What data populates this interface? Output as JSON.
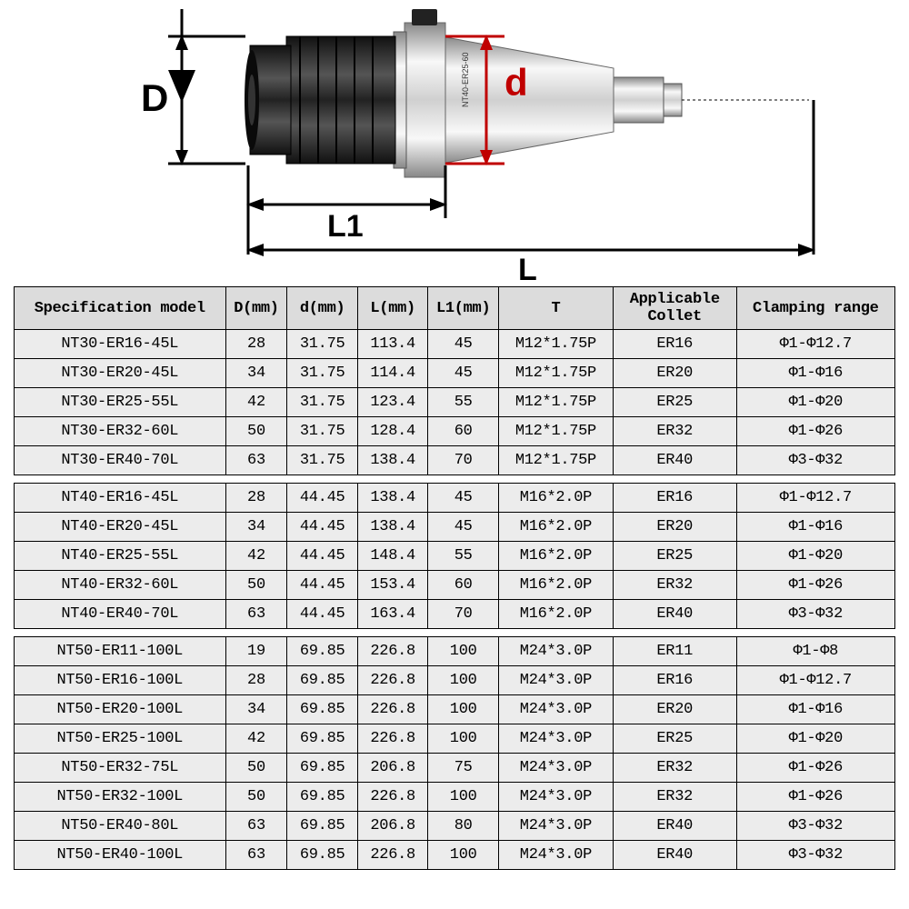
{
  "diagram": {
    "label_D": "D",
    "label_d": "d",
    "label_L1": "L1",
    "label_L": "L",
    "product_text": "NT40-ER25-60"
  },
  "headers": {
    "spec": "Specification model",
    "D": "D(mm)",
    "d": "d(mm)",
    "L": "L(mm)",
    "L1": "L1(mm)",
    "T": "T",
    "collet": "Applicable Collet",
    "range": "Clamping range"
  },
  "groups": [
    [
      {
        "spec": "NT30-ER16-45L",
        "D": "28",
        "d": "31.75",
        "L": "113.4",
        "L1": "45",
        "T": "M12*1.75P",
        "collet": "ER16",
        "range": "Φ1-Φ12.7"
      },
      {
        "spec": "NT30-ER20-45L",
        "D": "34",
        "d": "31.75",
        "L": "114.4",
        "L1": "45",
        "T": "M12*1.75P",
        "collet": "ER20",
        "range": "Φ1-Φ16"
      },
      {
        "spec": "NT30-ER25-55L",
        "D": "42",
        "d": "31.75",
        "L": "123.4",
        "L1": "55",
        "T": "M12*1.75P",
        "collet": "ER25",
        "range": "Φ1-Φ20"
      },
      {
        "spec": "NT30-ER32-60L",
        "D": "50",
        "d": "31.75",
        "L": "128.4",
        "L1": "60",
        "T": "M12*1.75P",
        "collet": "ER32",
        "range": "Φ1-Φ26"
      },
      {
        "spec": "NT30-ER40-70L",
        "D": "63",
        "d": "31.75",
        "L": "138.4",
        "L1": "70",
        "T": "M12*1.75P",
        "collet": "ER40",
        "range": "Φ3-Φ32"
      }
    ],
    [
      {
        "spec": "NT40-ER16-45L",
        "D": "28",
        "d": "44.45",
        "L": "138.4",
        "L1": "45",
        "T": "M16*2.0P",
        "collet": "ER16",
        "range": "Φ1-Φ12.7"
      },
      {
        "spec": "NT40-ER20-45L",
        "D": "34",
        "d": "44.45",
        "L": "138.4",
        "L1": "45",
        "T": "M16*2.0P",
        "collet": "ER20",
        "range": "Φ1-Φ16"
      },
      {
        "spec": "NT40-ER25-55L",
        "D": "42",
        "d": "44.45",
        "L": "148.4",
        "L1": "55",
        "T": "M16*2.0P",
        "collet": "ER25",
        "range": "Φ1-Φ20"
      },
      {
        "spec": "NT40-ER32-60L",
        "D": "50",
        "d": "44.45",
        "L": "153.4",
        "L1": "60",
        "T": "M16*2.0P",
        "collet": "ER32",
        "range": "Φ1-Φ26"
      },
      {
        "spec": "NT40-ER40-70L",
        "D": "63",
        "d": "44.45",
        "L": "163.4",
        "L1": "70",
        "T": "M16*2.0P",
        "collet": "ER40",
        "range": "Φ3-Φ32"
      }
    ],
    [
      {
        "spec": "NT50-ER11-100L",
        "D": "19",
        "d": "69.85",
        "L": "226.8",
        "L1": "100",
        "T": "M24*3.0P",
        "collet": "ER11",
        "range": "Φ1-Φ8"
      },
      {
        "spec": "NT50-ER16-100L",
        "D": "28",
        "d": "69.85",
        "L": "226.8",
        "L1": "100",
        "T": "M24*3.0P",
        "collet": "ER16",
        "range": "Φ1-Φ12.7"
      },
      {
        "spec": "NT50-ER20-100L",
        "D": "34",
        "d": "69.85",
        "L": "226.8",
        "L1": "100",
        "T": "M24*3.0P",
        "collet": "ER20",
        "range": "Φ1-Φ16"
      },
      {
        "spec": "NT50-ER25-100L",
        "D": "42",
        "d": "69.85",
        "L": "226.8",
        "L1": "100",
        "T": "M24*3.0P",
        "collet": "ER25",
        "range": "Φ1-Φ20"
      },
      {
        "spec": "NT50-ER32-75L",
        "D": "50",
        "d": "69.85",
        "L": "206.8",
        "L1": "75",
        "T": "M24*3.0P",
        "collet": "ER32",
        "range": "Φ1-Φ26"
      },
      {
        "spec": "NT50-ER32-100L",
        "D": "50",
        "d": "69.85",
        "L": "226.8",
        "L1": "100",
        "T": "M24*3.0P",
        "collet": "ER32",
        "range": "Φ1-Φ26"
      },
      {
        "spec": "NT50-ER40-80L",
        "D": "63",
        "d": "69.85",
        "L": "206.8",
        "L1": "80",
        "T": "M24*3.0P",
        "collet": "ER40",
        "range": "Φ3-Φ32"
      },
      {
        "spec": "NT50-ER40-100L",
        "D": "63",
        "d": "69.85",
        "L": "226.8",
        "L1": "100",
        "T": "M24*3.0P",
        "collet": "ER40",
        "range": "Φ3-Φ32"
      }
    ]
  ],
  "colors": {
    "header_bg": "#dcdcdc",
    "cell_bg": "#ececec",
    "border": "#000000",
    "dim_red": "#c00000"
  }
}
